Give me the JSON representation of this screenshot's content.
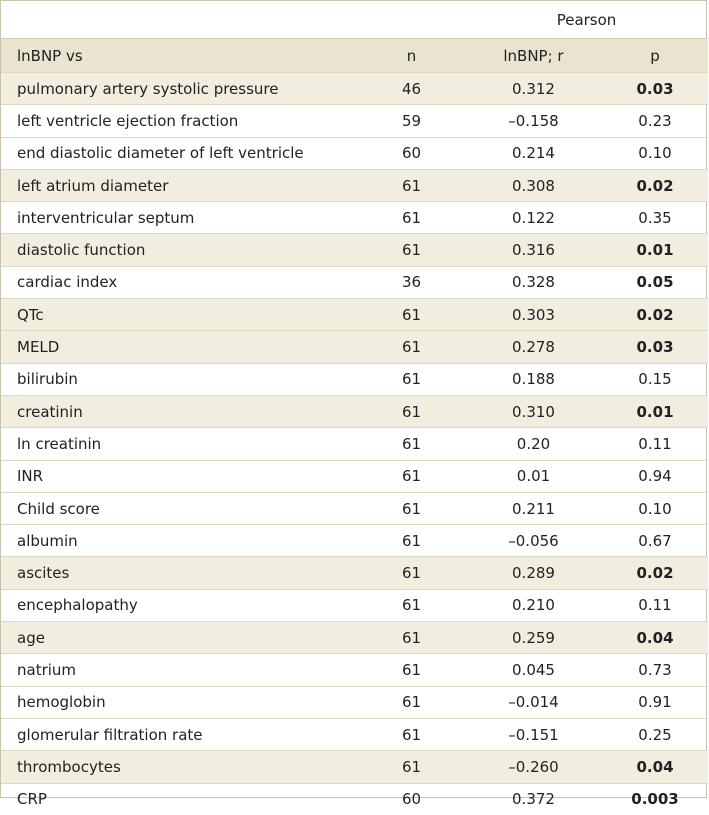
{
  "table": {
    "group_header": "Pearson",
    "columns": {
      "label": "lnBNP vs",
      "n": "n",
      "r": "lnBNP; r",
      "p": "p"
    },
    "rows": [
      {
        "label": "pulmonary artery systolic pressure",
        "n": "46",
        "r": "0.312",
        "p": "0.03",
        "significant": true,
        "shaded": true
      },
      {
        "label": "left ventricle ejection fraction",
        "n": "59",
        "r": "–0.158",
        "p": "0.23",
        "significant": false,
        "shaded": false
      },
      {
        "label": "end diastolic diameter of left ventricle",
        "n": "60",
        "r": "0.214",
        "p": "0.10",
        "significant": false,
        "shaded": false
      },
      {
        "label": "left atrium diameter",
        "n": "61",
        "r": "0.308",
        "p": "0.02",
        "significant": true,
        "shaded": true
      },
      {
        "label": "interventricular septum",
        "n": "61",
        "r": "0.122",
        "p": "0.35",
        "significant": false,
        "shaded": false
      },
      {
        "label": "diastolic function",
        "n": "61",
        "r": "0.316",
        "p": "0.01",
        "significant": true,
        "shaded": true
      },
      {
        "label": "cardiac index",
        "n": "36",
        "r": "0.328",
        "p": "0.05",
        "significant": true,
        "shaded": false
      },
      {
        "label": "QTc",
        "n": "61",
        "r": "0.303",
        "p": "0.02",
        "significant": true,
        "shaded": true
      },
      {
        "label": "MELD",
        "n": "61",
        "r": "0.278",
        "p": "0.03",
        "significant": true,
        "shaded": true
      },
      {
        "label": "bilirubin",
        "n": "61",
        "r": "0.188",
        "p": "0.15",
        "significant": false,
        "shaded": false
      },
      {
        "label": "creatinin",
        "n": "61",
        "r": "0.310",
        "p": "0.01",
        "significant": true,
        "shaded": true
      },
      {
        "label": "ln creatinin",
        "n": "61",
        "r": "0.20",
        "p": "0.11",
        "significant": false,
        "shaded": false
      },
      {
        "label": "INR",
        "n": "61",
        "r": "0.01",
        "p": "0.94",
        "significant": false,
        "shaded": false
      },
      {
        "label": "Child score",
        "n": "61",
        "r": "0.211",
        "p": "0.10",
        "significant": false,
        "shaded": false
      },
      {
        "label": "albumin",
        "n": "61",
        "r": "–0.056",
        "p": "0.67",
        "significant": false,
        "shaded": false
      },
      {
        "label": "ascites",
        "n": "61",
        "r": "0.289",
        "p": "0.02",
        "significant": true,
        "shaded": true
      },
      {
        "label": "encephalopathy",
        "n": "61",
        "r": "0.210",
        "p": "0.11",
        "significant": false,
        "shaded": false
      },
      {
        "label": "age",
        "n": "61",
        "r": "0.259",
        "p": "0.04",
        "significant": true,
        "shaded": true
      },
      {
        "label": "natrium",
        "n": "61",
        "r": "0.045",
        "p": "0.73",
        "significant": false,
        "shaded": false
      },
      {
        "label": "hemoglobin",
        "n": "61",
        "r": "–0.014",
        "p": "0.91",
        "significant": false,
        "shaded": false
      },
      {
        "label": "glomerular filtration rate",
        "n": "61",
        "r": "–0.151",
        "p": "0.25",
        "significant": false,
        "shaded": false
      },
      {
        "label": "thrombocytes",
        "n": "61",
        "r": "–0.260",
        "p": "0.04",
        "significant": true,
        "shaded": true
      },
      {
        "label": "CRP",
        "n": "60",
        "r": "0.372",
        "p": "0.003",
        "significant": true,
        "shaded": false
      }
    ]
  },
  "colors": {
    "header_bg": "#e8e4d0",
    "shaded_row_bg": "#f1eee0",
    "rule": "#ddd8c2",
    "text": "#222222"
  }
}
